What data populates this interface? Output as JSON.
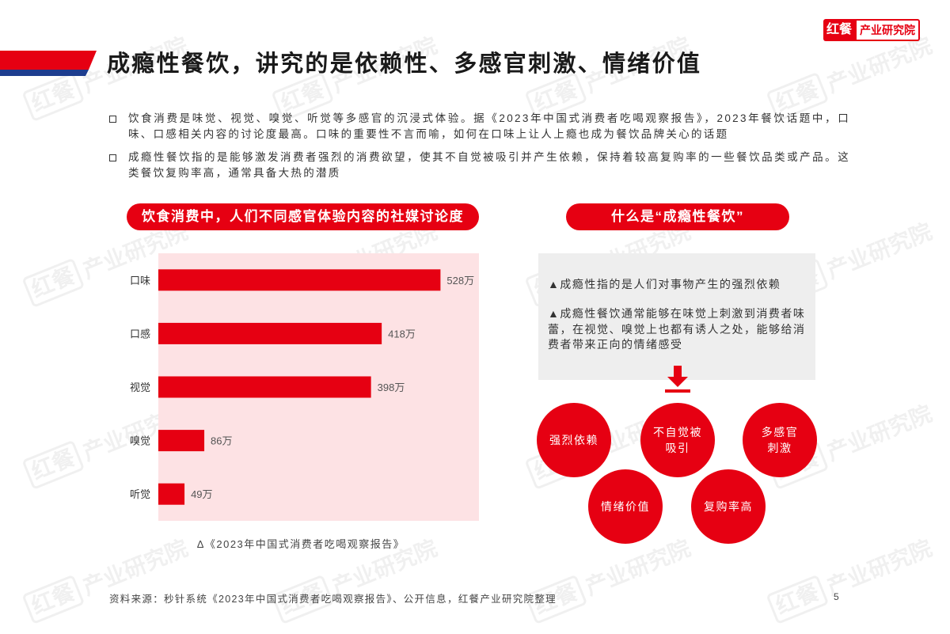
{
  "logo": {
    "mark": "红餐",
    "name": "产业研究院"
  },
  "title": "成瘾性餐饮，讲究的是依赖性、多感官刺激、情绪价值",
  "bullets": [
    "饮食消费是味觉、视觉、嗅觉、听觉等多感官的沉浸式体验。据《2023年中国式消费者吃喝观察报告》，2023年餐饮话题中，口味、口感相关内容的讨论度最高。口味的重要性不言而喻，如何在口味上让人上瘾也成为餐饮品牌关心的话题",
    "成瘾性餐饮指的是能够激发消费者强烈的消费欲望，使其不自觉被吸引并产生依赖，保持着较高复购率的一些餐饮品类或产品。这类餐饮复购率高，通常具备大热的潜质"
  ],
  "chart_data": {
    "type": "bar",
    "orientation": "horizontal",
    "title": "饮食消费中，人们不同感官体验内容的社媒讨论度",
    "categories": [
      "口味",
      "口感",
      "视觉",
      "嗅觉",
      "听觉"
    ],
    "values": [
      528,
      418,
      398,
      86,
      49
    ],
    "data_labels": [
      "528万",
      "418万",
      "398万",
      "86万",
      "49万"
    ],
    "xlim": [
      0,
      600
    ],
    "grid": false,
    "source": "Δ《2023年中国式消费者吃喝观察报告》"
  },
  "definition": {
    "heading": "什么是“成瘾性餐饮”",
    "points": [
      "▲成瘾性指的是人们对事物产生的强烈依赖",
      "▲成瘾性餐饮通常能够在味觉上刺激到消费者味蕾，在视觉、嗅觉上也都有诱人之处，能够给消费者带来正向的情绪感受"
    ],
    "traits": [
      [
        "强烈依赖"
      ],
      [
        "不自觉被",
        "吸引"
      ],
      [
        "多感官",
        "刺激"
      ],
      [
        "情绪价值"
      ],
      [
        "复购率高"
      ]
    ]
  },
  "footer": {
    "source": "资料来源：秒针系统《2023年中国式消费者吃喝观察报告》、公开信息，红餐产业研究院整理",
    "page_number": "5"
  },
  "colors": {
    "accent": "#e60012",
    "chart_bg": "#fde2e4",
    "stripe_blue": "#1d3d8f",
    "box_bg": "#eeeeee",
    "label_text": "#555555"
  },
  "icons": {
    "bullet": "hollow-square-icon",
    "arrow": "arrow-down-icon"
  }
}
